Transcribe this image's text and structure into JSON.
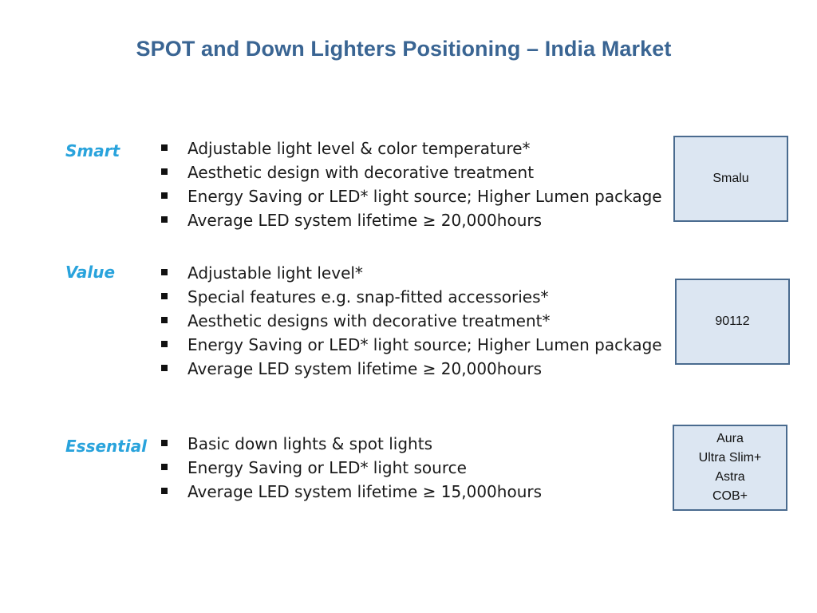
{
  "slide": {
    "title": "SPOT and Down Lighters Positioning – India Market"
  },
  "tiers": [
    {
      "label": "Smart",
      "bullets": [
        "Adjustable light level & color temperature*",
        "Aesthetic design with decorative treatment",
        "Energy Saving or LED* light source; Higher Lumen package",
        "Average LED system lifetime ≥ 20,000hours"
      ],
      "products": [
        "Smalu"
      ]
    },
    {
      "label": "Value",
      "bullets": [
        "Adjustable light level*",
        "Special features e.g. snap-fitted accessories*",
        "Aesthetic designs with decorative treatment*",
        "Energy Saving or LED* light source; Higher Lumen package",
        "Average LED system lifetime ≥ 20,000hours"
      ],
      "products": [
        "90112"
      ]
    },
    {
      "label": "Essential",
      "bullets": [
        "Basic down lights & spot lights",
        "Energy Saving or LED* light source",
        "Average LED system lifetime ≥ 15,000hours"
      ],
      "products": [
        "Aura",
        "Ultra Slim+",
        "Astra",
        "COB+"
      ]
    }
  ],
  "colors": {
    "title": "#3a6593",
    "tier_label": "#29a3dc",
    "box_fill": "#dce6f2",
    "box_border": "#4a6b8f"
  }
}
